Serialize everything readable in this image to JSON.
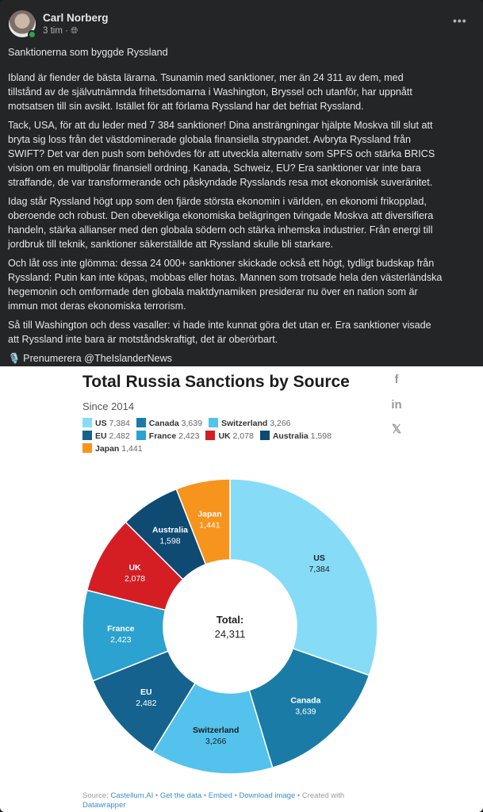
{
  "post": {
    "author": "Carl Norberg",
    "time": "3 tim",
    "audience_icon": "globe-icon",
    "more_icon": "•••",
    "paragraphs": [
      [
        "Sanktionerna som byggde Ryssland"
      ],
      [
        "Ibland är fiender de bästa lärarna.  Tsunamin med sanktioner, mer än 24 311 av dem, med",
        "tillstånd av de självutnämnda frihetsdomarna i Washington, Bryssel och utanför, har uppnått",
        "motsatsen till sin avsikt.  Istället för att förlama Ryssland har det befriat Ryssland."
      ],
      [
        " Tack, USA, för att du leder med 7 384 sanktioner!  Dina ansträngningar hjälpte Moskva till slut att",
        "bryta sig loss från det västdominerade globala finansiella strypandet.  Avbryta Ryssland från",
        "SWIFT?  Det var den push som behövdes för att utveckla alternativ som SPFS och stärka BRICS",
        "vision om en multipolär finansiell ordning.  Kanada, Schweiz, EU?  Era sanktioner var inte bara",
        "straffande, de var transformerande och påskyndade Rysslands resa mot ekonomisk suveränitet."
      ],
      [
        " Idag står Ryssland högt upp som den fjärde största ekonomin i världen, en ekonomi frikopplad,",
        "oberoende och robust.  Den obevekliga ekonomiska belägringen tvingade Moskva att diversifiera",
        "handeln, stärka allianser med den globala södern och stärka inhemska industrier.  Från energi till",
        "jordbruk till teknik, sanktioner säkerställde att Ryssland skulle bli starkare."
      ],
      [
        " Och låt oss inte glömma: dessa 24 000+ sanktioner skickade också ett högt, tydligt budskap från",
        "Ryssland: Putin kan inte köpas, mobbas eller hotas.  Mannen som trotsade hela den västerländska",
        "hegemonin och omformade den globala maktdynamiken presiderar nu över en nation som är",
        "immun mot deras ekonomiska terrorism."
      ],
      [
        " Så till Washington och dess vasaller: vi hade inte kunnat göra det utan er.  Era sanktioner visade",
        "att Ryssland inte bara är motståndskraftigt, det är oberörbart."
      ],
      [
        " 🎙️ Prenumerera @TheIslanderNews"
      ]
    ]
  },
  "chart_data": {
    "type": "pie",
    "donut": true,
    "title": "Total Russia Sanctions by Source",
    "subtitle": "Since 2014",
    "center_label": "Total:",
    "center_value": "24,311",
    "categories": [
      "US",
      "Canada",
      "Switzerland",
      "EU",
      "France",
      "UK",
      "Australia",
      "Japan"
    ],
    "values": [
      7384,
      3639,
      3266,
      2482,
      2423,
      2078,
      1598,
      1441
    ],
    "labels": [
      "7,384",
      "3,639",
      "3,266",
      "2,482",
      "2,423",
      "2,078",
      "1,598",
      "1,441"
    ],
    "colors": [
      "#86dbf7",
      "#1a7ca6",
      "#53c2ec",
      "#16628e",
      "#2ba2cf",
      "#d41e24",
      "#0f4a72",
      "#f7941d"
    ],
    "label_colors": [
      "#1d1d1d",
      "#ffffff",
      "#1d1d1d",
      "#ffffff",
      "#ffffff",
      "#ffffff",
      "#ffffff",
      "#ffffff"
    ],
    "legend_placement": "top-left",
    "social_icons": [
      "facebook-icon",
      "linkedin-icon",
      "x-icon"
    ],
    "source": {
      "prefix": "Source: ",
      "source_link": "Castellum.AI",
      "sep": " • ",
      "get_data": "Get the data",
      "embed": "Embed",
      "download": "Download image",
      "created": "Created with ",
      "tool": "Datawrapper"
    }
  }
}
